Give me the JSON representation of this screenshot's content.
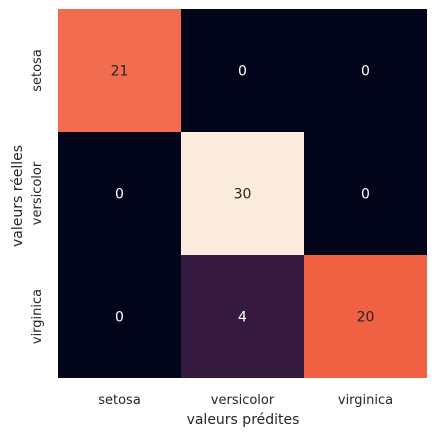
{
  "chart_data": {
    "type": "heatmap",
    "xlabel": "valeurs prédites",
    "ylabel": "valeurs réelles",
    "x_categories": [
      "setosa",
      "versicolor",
      "virginica"
    ],
    "y_categories": [
      "setosa",
      "versicolor",
      "virginica"
    ],
    "values": [
      [
        21,
        0,
        0
      ],
      [
        0,
        30,
        0
      ],
      [
        0,
        4,
        20
      ]
    ],
    "vmin": 0,
    "vmax": 30,
    "colorbar": false,
    "colors": {
      "0": "#03051a",
      "4": "#36193e",
      "20": "#f06043",
      "21": "#f26c4f",
      "30": "#faebdd"
    },
    "cell_text_colors": {
      "on_dark": "#ffffff",
      "on_light": "#262626"
    }
  }
}
